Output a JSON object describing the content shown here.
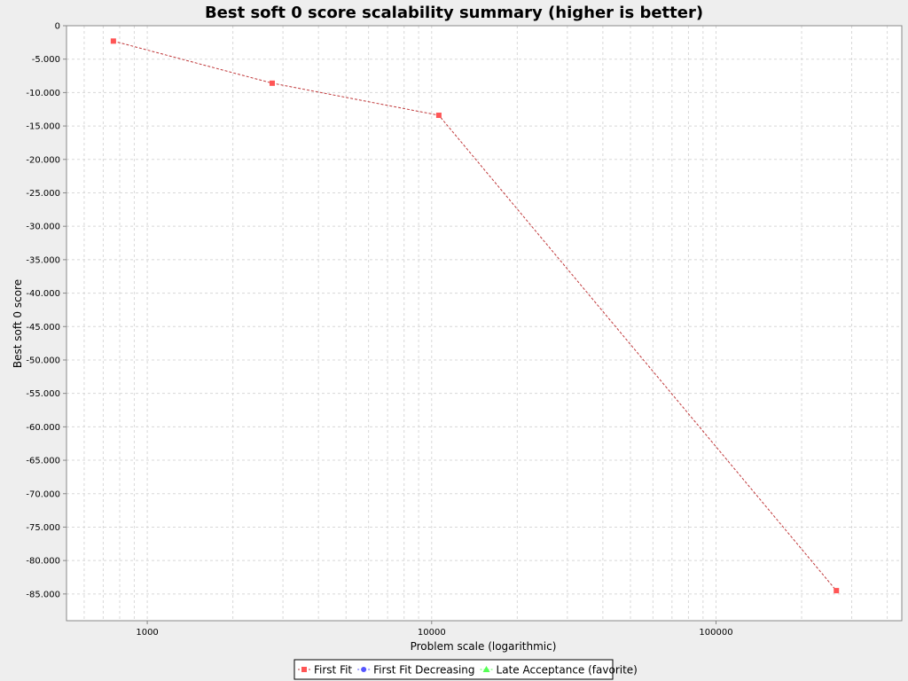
{
  "chart_data": {
    "type": "line",
    "title": "Best soft 0 score scalability summary (higher is better)",
    "xlabel": "Problem scale (logarithmic)",
    "ylabel": "Best soft 0 score",
    "x_scale": "log",
    "xlim": [
      520,
      450000
    ],
    "ylim": [
      -89000,
      0
    ],
    "x_ticks": [
      {
        "value": 1000,
        "label": "1000"
      },
      {
        "value": 10000,
        "label": "10000"
      },
      {
        "value": 100000,
        "label": "100000"
      }
    ],
    "y_ticks": [
      {
        "value": 0,
        "label": "0"
      },
      {
        "value": -5000,
        "label": "-5.000"
      },
      {
        "value": -10000,
        "label": "-10.000"
      },
      {
        "value": -15000,
        "label": "-15.000"
      },
      {
        "value": -20000,
        "label": "-20.000"
      },
      {
        "value": -25000,
        "label": "-25.000"
      },
      {
        "value": -30000,
        "label": "-30.000"
      },
      {
        "value": -35000,
        "label": "-35.000"
      },
      {
        "value": -40000,
        "label": "-40.000"
      },
      {
        "value": -45000,
        "label": "-45.000"
      },
      {
        "value": -50000,
        "label": "-50.000"
      },
      {
        "value": -55000,
        "label": "-55.000"
      },
      {
        "value": -60000,
        "label": "-60.000"
      },
      {
        "value": -65000,
        "label": "-65.000"
      },
      {
        "value": -70000,
        "label": "-70.000"
      },
      {
        "value": -75000,
        "label": "-75.000"
      },
      {
        "value": -80000,
        "label": "-80.000"
      },
      {
        "value": -85000,
        "label": "-85.000"
      }
    ],
    "grid": true,
    "legend_position": "bottom",
    "series": [
      {
        "name": "First Fit",
        "color": "#ff5555",
        "line_color": "#c0393b",
        "marker": "square",
        "points": [
          {
            "x": 760,
            "y": -2300
          },
          {
            "x": 2750,
            "y": -8600
          },
          {
            "x": 10600,
            "y": -13400
          },
          {
            "x": 265000,
            "y": -84500
          }
        ]
      },
      {
        "name": "First Fit Decreasing",
        "color": "#5555ff",
        "line_color": "#5555ff",
        "marker": "circle",
        "points": []
      },
      {
        "name": "Late Acceptance (favorite)",
        "color": "#55ff55",
        "line_color": "#55ff55",
        "marker": "triangle",
        "points": []
      }
    ]
  }
}
